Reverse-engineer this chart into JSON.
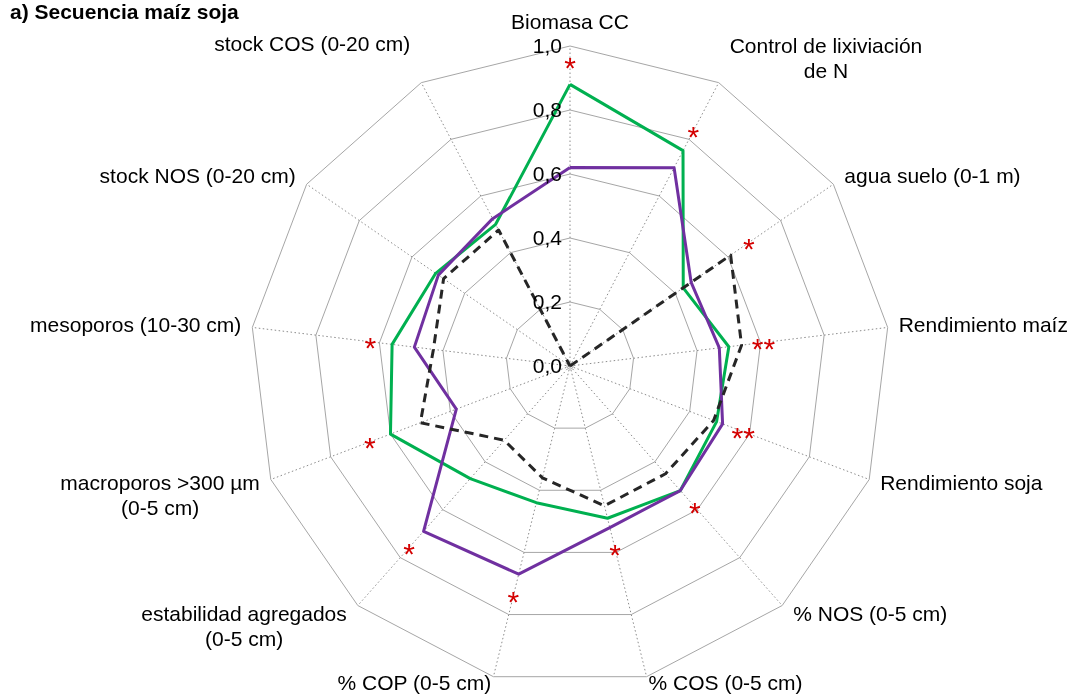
{
  "chart_data": {
    "type": "radar",
    "title": "a) Secuencia maíz soja",
    "categories": [
      "Biomasa CC",
      "Control de lixiviación de N",
      "agua suelo (0-1 m)",
      "Rendimiento maíz",
      "Rendimiento soja",
      "% NOS (0-5 cm)",
      "% COS (0-5 cm)",
      "% COP (0-5 cm)",
      "estabilidad agregados (0-5 cm)",
      "macroporos >300 µm (0-5 cm)",
      "mesoporos (10-30 cm)",
      "stock NOS (0-20 cm)",
      "stock COS (0-20 cm)"
    ],
    "series": [
      {
        "color": "#00b050",
        "values": [
          0.88,
          0.76,
          0.43,
          0.5,
          0.49,
          0.52,
          0.49,
          0.44,
          0.47,
          0.6,
          0.56,
          0.51,
          0.5
        ]
      },
      {
        "color": "#7030a0",
        "values": [
          0.62,
          0.7,
          0.46,
          0.47,
          0.51,
          0.52,
          0.52,
          0.67,
          0.69,
          0.38,
          0.49,
          0.5,
          0.52
        ]
      },
      {
        "color": "#262626",
        "line_style": "dashed",
        "values": [
          0.0,
          0.0,
          0.61,
          0.54,
          0.48,
          0.45,
          0.45,
          0.36,
          0.31,
          0.5,
          0.43,
          0.48,
          0.48
        ]
      }
    ],
    "ylim": [
      0,
      1
    ],
    "yticks": [
      {
        "value": 0,
        "label": "0,0"
      },
      {
        "value": 0.2,
        "label": "0,2"
      },
      {
        "value": 0.4,
        "label": "0,4"
      },
      {
        "value": 0.6,
        "label": "0,6"
      },
      {
        "value": 0.8,
        "label": "0,8"
      },
      {
        "value": 1,
        "label": "1,0"
      }
    ],
    "grid": true,
    "line_style": "solid",
    "annotations": [
      {
        "text": "*",
        "x": "Biomasa CC"
      },
      {
        "text": "*",
        "x": "Control de lixiviación de N"
      },
      {
        "text": "*",
        "x": "agua suelo (0-1 m)"
      },
      {
        "text": "**",
        "x": "Rendimiento maíz"
      },
      {
        "text": "**",
        "x": "Rendimiento soja"
      },
      {
        "text": "*",
        "x": "% NOS (0-5 cm)"
      },
      {
        "text": "*",
        "x": "% COS (0-5 cm)"
      },
      {
        "text": "*",
        "x": "% COP (0-5 cm)"
      },
      {
        "text": "*",
        "x": "estabilidad agregados (0-5 cm)"
      },
      {
        "text": "*",
        "x": "macroporos >300 µm (0-5 cm)"
      },
      {
        "text": "*",
        "x": "mesoporos (10-30 cm)"
      }
    ]
  }
}
